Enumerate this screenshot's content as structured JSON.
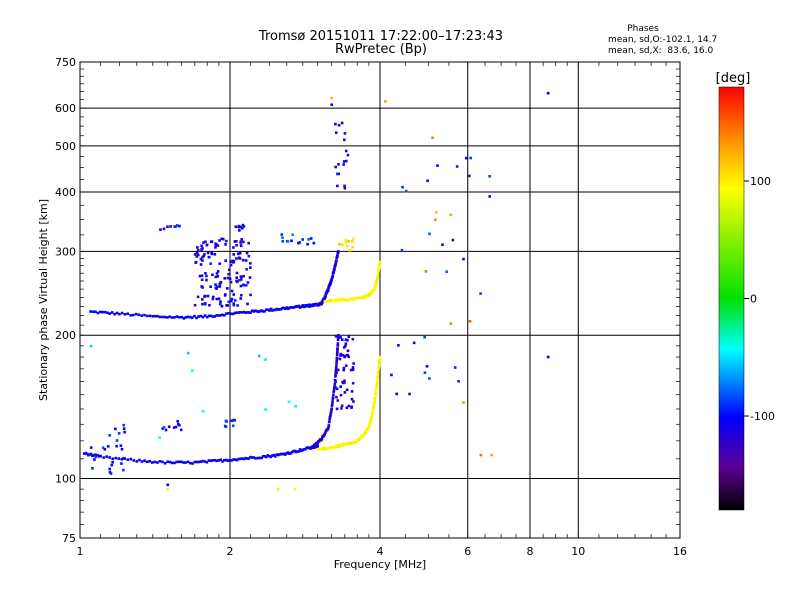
{
  "chart_data": {
    "type": "scatter",
    "title": "Tromsø 20151011 17:22:00–17:23:43",
    "subtitle": "RwPretec (Bp)",
    "xlabel": "Frequency [MHz]",
    "ylabel": "Stationary phase Virtual Height [km]",
    "xscale": "log2",
    "yscale": "log",
    "xlim": [
      1,
      16
    ],
    "ylim": [
      75,
      750
    ],
    "xticks": [
      1,
      2,
      4,
      6,
      8,
      10,
      16
    ],
    "yticks": [
      75,
      100,
      200,
      300,
      400,
      500,
      600,
      750
    ],
    "grid": true,
    "phase_box": {
      "title": "Phases",
      "line1": "mean, sd,O:-102.1, 14.7",
      "line2": "mean, sd,X:  83.6, 16.0"
    },
    "colorbar": {
      "label": "[deg]",
      "range": [
        -180,
        180
      ],
      "ticks": [
        {
          "value": 100,
          "label": "100"
        },
        {
          "value": 0,
          "label": "0"
        },
        {
          "value": -100,
          "label": "-100"
        }
      ]
    },
    "traces": [
      {
        "kind": "curve",
        "phase": -105,
        "f": [
          1.05,
          1.2,
          1.4,
          1.6,
          1.8,
          2.0,
          2.2,
          2.4,
          2.6,
          2.8,
          2.9,
          3.0,
          3.05
        ],
        "h": [
          224,
          222,
          219,
          218,
          219,
          222,
          224,
          226,
          228,
          230,
          231,
          232,
          233
        ]
      },
      {
        "kind": "curve",
        "phase": -110,
        "f": [
          3.05,
          3.1,
          3.15,
          3.2,
          3.25,
          3.3
        ],
        "h": [
          233,
          240,
          250,
          262,
          280,
          300
        ]
      },
      {
        "kind": "curve",
        "phase": 95,
        "f": [
          3.1,
          3.3,
          3.5,
          3.7,
          3.8,
          3.9,
          3.95,
          4.0
        ],
        "h": [
          236,
          237,
          238,
          240,
          243,
          250,
          262,
          285
        ]
      },
      {
        "kind": "curve",
        "phase": -105,
        "f": [
          1.02,
          1.1,
          1.3,
          1.5,
          1.7,
          1.9,
          2.1,
          2.3,
          2.5,
          2.7,
          2.9,
          3.0
        ],
        "h": [
          113,
          111,
          109,
          108,
          108,
          109,
          110,
          111,
          112,
          114,
          116,
          117
        ]
      },
      {
        "kind": "curve",
        "phase": -120,
        "f": [
          2.95,
          3.05,
          3.15,
          3.2,
          3.25,
          3.28,
          3.3
        ],
        "h": [
          117,
          121,
          128,
          140,
          160,
          180,
          200
        ]
      },
      {
        "kind": "curve",
        "phase": 95,
        "f": [
          3.0,
          3.2,
          3.4,
          3.6,
          3.7,
          3.8,
          3.85,
          3.9,
          3.95,
          4.0
        ],
        "h": [
          115,
          116,
          118,
          120,
          123,
          128,
          135,
          145,
          160,
          180
        ]
      },
      {
        "kind": "cluster",
        "phase": -110,
        "f": [
          1.7,
          2.2
        ],
        "h": [
          230,
          320
        ],
        "n": 150
      },
      {
        "kind": "cluster",
        "phase": -115,
        "f": [
          3.25,
          3.55
        ],
        "h": [
          140,
          200
        ],
        "n": 55
      },
      {
        "kind": "cluster",
        "phase": -100,
        "f": [
          1.05,
          1.25
        ],
        "h": [
          102,
          132
        ],
        "n": 25
      },
      {
        "kind": "cluster",
        "phase": -100,
        "f": [
          1.45,
          1.6
        ],
        "h": [
          125,
          132
        ],
        "n": 10
      },
      {
        "kind": "cluster",
        "phase": -100,
        "f": [
          1.95,
          2.1
        ],
        "h": [
          128,
          133
        ],
        "n": 8
      },
      {
        "kind": "cluster",
        "phase": -105,
        "f": [
          1.45,
          1.6
        ],
        "h": [
          332,
          342
        ],
        "n": 8
      },
      {
        "kind": "cluster",
        "phase": -105,
        "f": [
          2.0,
          2.15
        ],
        "h": [
          332,
          342
        ],
        "n": 8
      },
      {
        "kind": "cluster",
        "phase": -90,
        "f": [
          2.5,
          3.0
        ],
        "h": [
          310,
          330
        ],
        "n": 14
      },
      {
        "kind": "cluster",
        "phase": -110,
        "f": [
          3.25,
          3.45
        ],
        "h": [
          400,
          560
        ],
        "n": 18
      },
      {
        "kind": "cluster",
        "phase": 100,
        "f": [
          3.3,
          3.6
        ],
        "h": [
          300,
          320
        ],
        "n": 10
      },
      {
        "kind": "cluster",
        "phase": -100,
        "f": [
          4.2,
          6.8
        ],
        "h": [
          150,
          480
        ],
        "n": 28
      },
      {
        "kind": "cluster",
        "phase": 135,
        "f": [
          4.9,
          6.5
        ],
        "h": [
          110,
          380
        ],
        "n": 8
      },
      {
        "kind": "cluster",
        "phase": -40,
        "f": [
          1.0,
          3.0
        ],
        "h": [
          120,
          200
        ],
        "n": 10
      },
      {
        "kind": "point",
        "phase": -100,
        "f": 8.7,
        "h": 645
      },
      {
        "kind": "point",
        "phase": -100,
        "f": 8.7,
        "h": 180
      },
      {
        "kind": "point",
        "phase": 120,
        "f": 3.2,
        "h": 630
      },
      {
        "kind": "point",
        "phase": -110,
        "f": 3.2,
        "h": 610
      },
      {
        "kind": "point",
        "phase": 140,
        "f": 5.1,
        "h": 520
      },
      {
        "kind": "point",
        "phase": 130,
        "f": 4.1,
        "h": 620
      },
      {
        "kind": "point",
        "phase": 90,
        "f": 1.5,
        "h": 95
      },
      {
        "kind": "point",
        "phase": -100,
        "f": 1.5,
        "h": 97
      },
      {
        "kind": "point",
        "phase": 90,
        "f": 2.5,
        "h": 95
      },
      {
        "kind": "point",
        "phase": 90,
        "f": 2.7,
        "h": 95
      },
      {
        "kind": "point",
        "phase": 130,
        "f": 6.7,
        "h": 112
      }
    ]
  }
}
